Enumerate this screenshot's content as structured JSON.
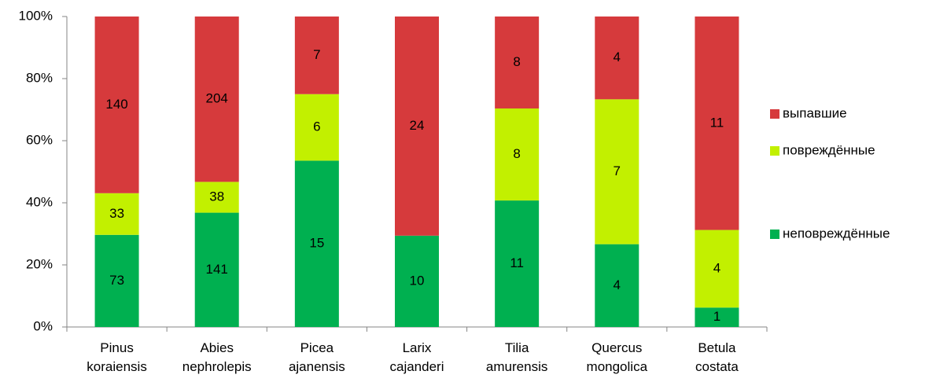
{
  "chart_data": {
    "type": "bar",
    "stacked": "percent",
    "categories": [
      [
        "Pinus",
        "koraiensis"
      ],
      [
        "Abies",
        "nephrolepis"
      ],
      [
        "Picea",
        "ajanensis"
      ],
      [
        "Larix",
        "cajanderi"
      ],
      [
        "Tilia",
        "amurensis"
      ],
      [
        "Quercus",
        "mongolica"
      ],
      [
        "Betula",
        "costata"
      ]
    ],
    "series": [
      {
        "name": "неповреждённые",
        "color": "#00b050",
        "values": [
          73,
          141,
          15,
          10,
          11,
          4,
          1
        ]
      },
      {
        "name": "повреждённые",
        "color": "#c2f000",
        "values": [
          33,
          38,
          6,
          0,
          8,
          7,
          4
        ]
      },
      {
        "name": "выпавшие",
        "color": "#d63a3c",
        "values": [
          140,
          204,
          7,
          24,
          8,
          4,
          11
        ]
      }
    ],
    "ylim": [
      0,
      100
    ],
    "yticks": [
      {
        "value": 0,
        "label": "0%"
      },
      {
        "value": 20,
        "label": "20%"
      },
      {
        "value": 40,
        "label": "40%"
      },
      {
        "value": 60,
        "label": "60%"
      },
      {
        "value": 80,
        "label": "80%"
      },
      {
        "value": 100,
        "label": "100%"
      }
    ],
    "legend": "right"
  }
}
